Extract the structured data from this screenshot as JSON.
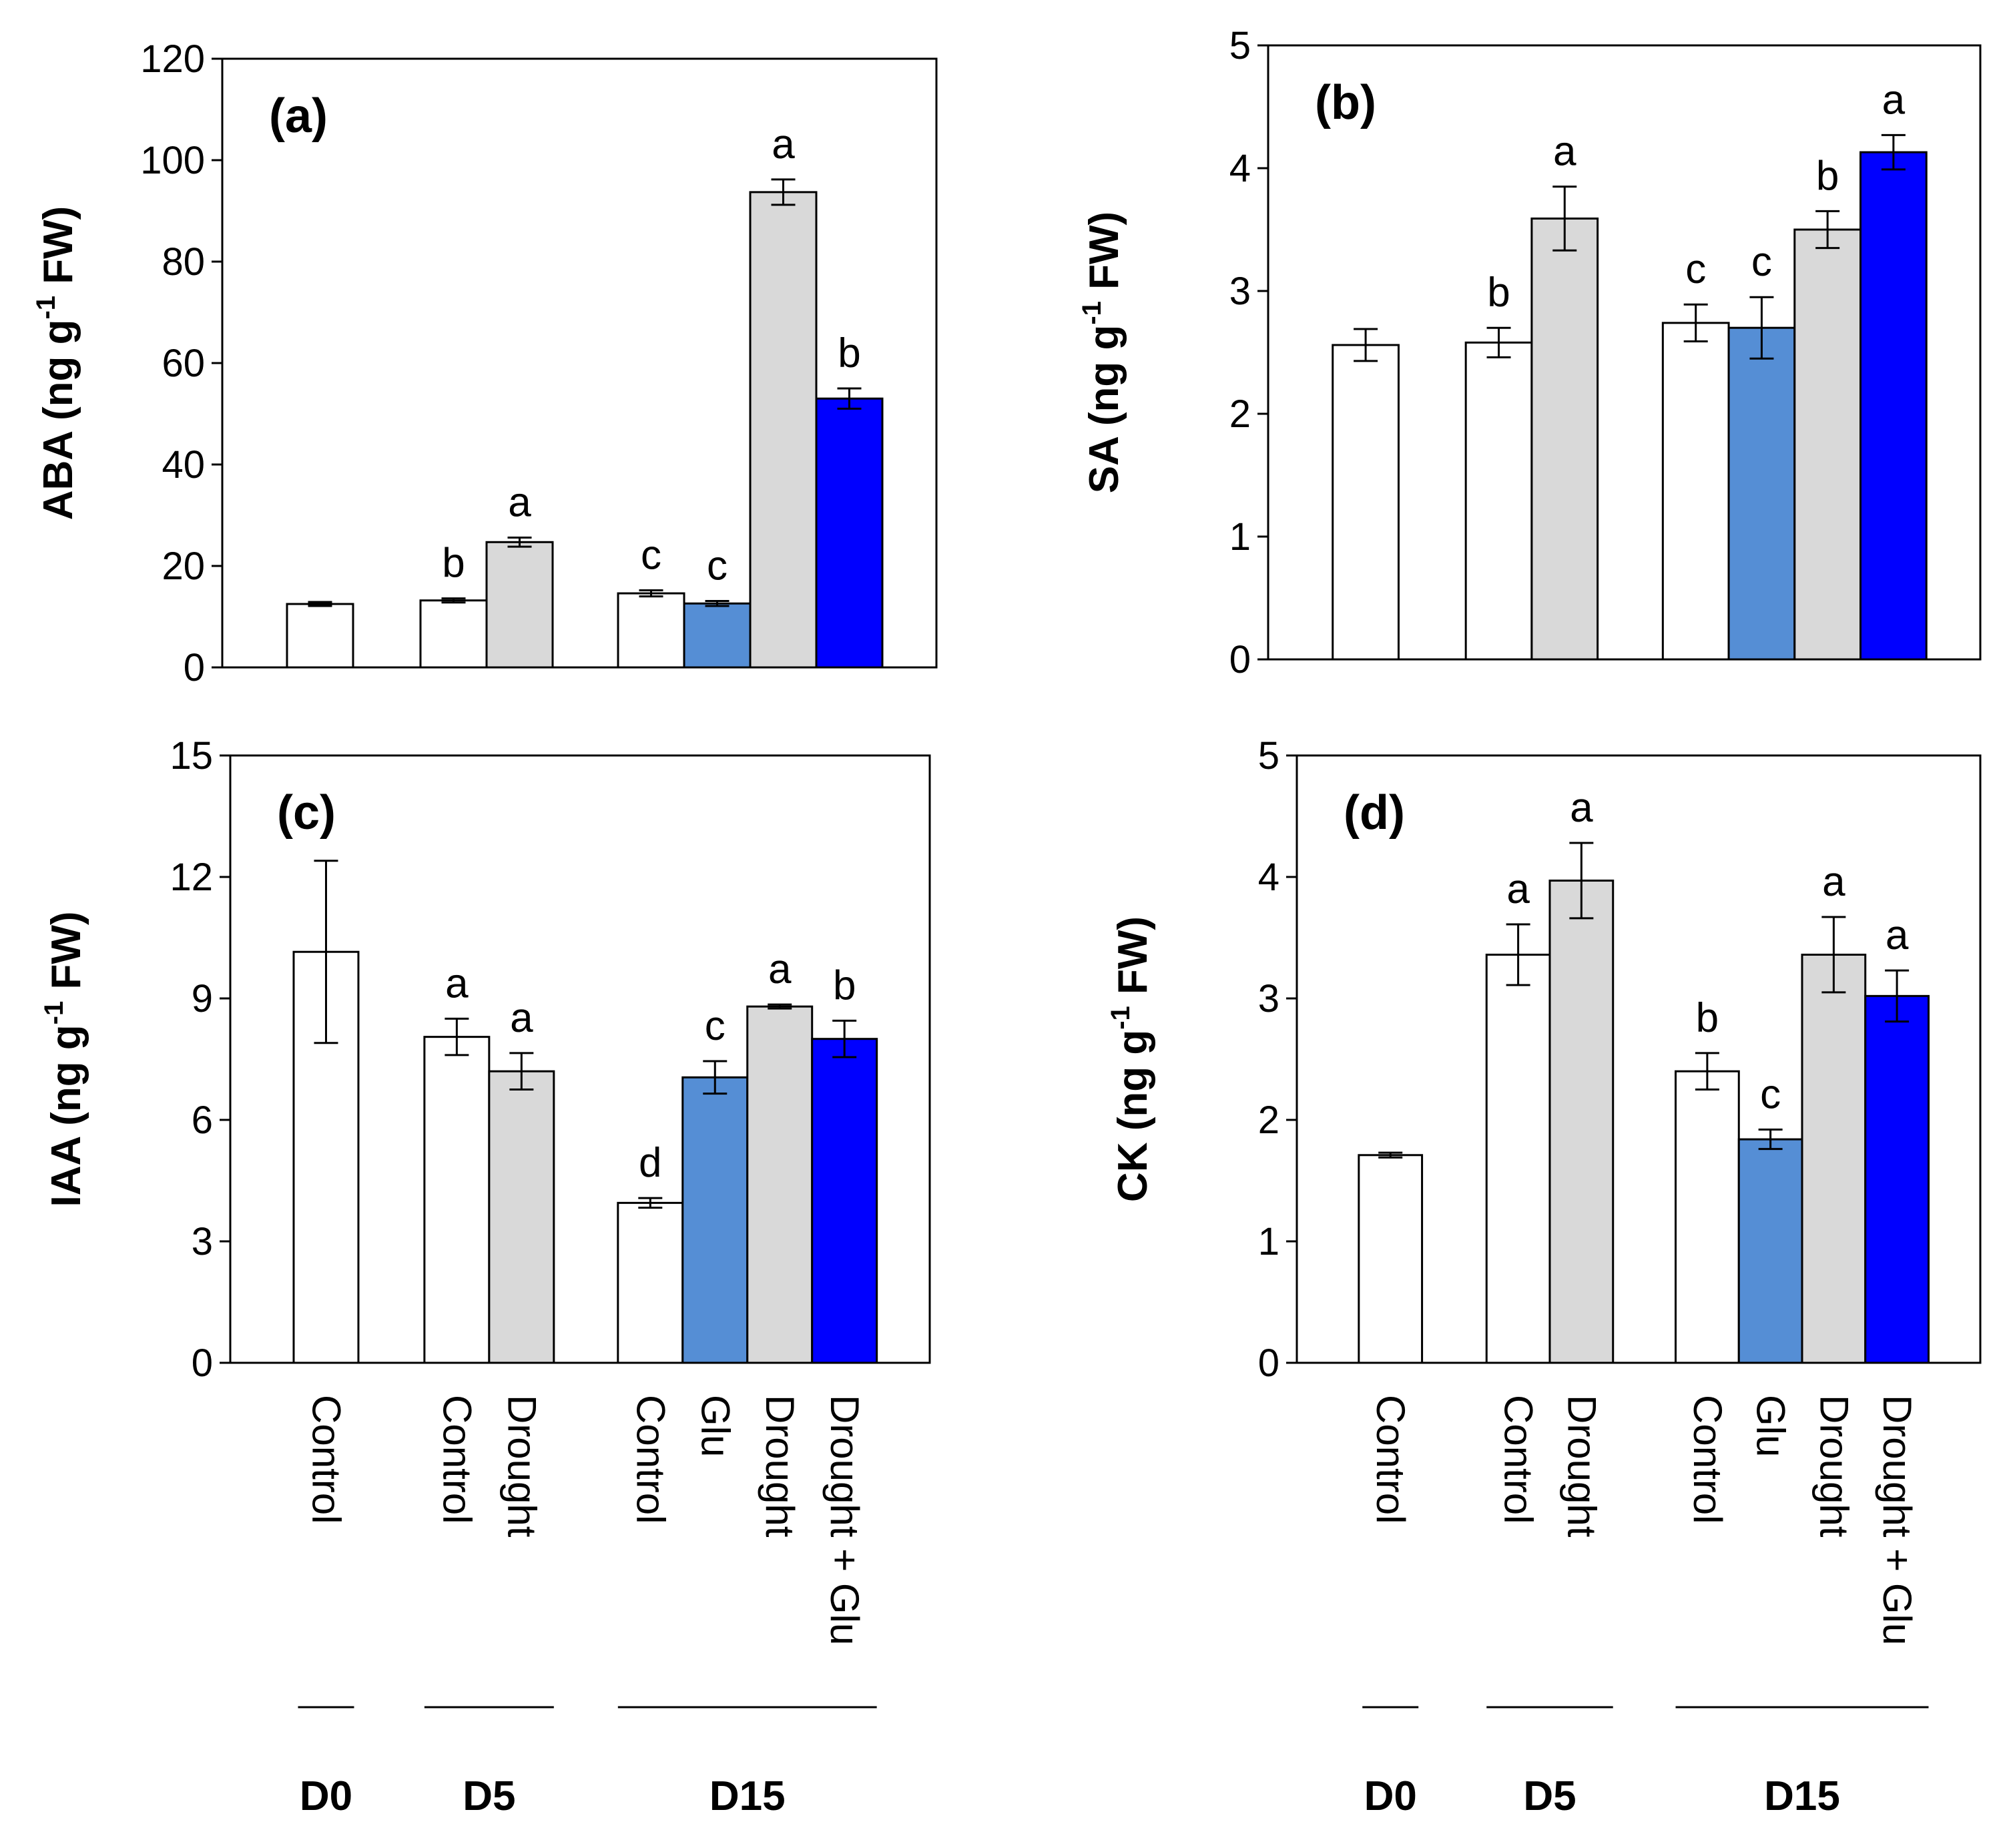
{
  "colors": {
    "Control": "#ffffff",
    "Glu": "#558ed5",
    "Drought": "#d9d9d9",
    "Drought + Glu": "#0000ff",
    "stroke": "#000000"
  },
  "chart_data": [
    {
      "id": "a",
      "type": "bar",
      "panel_label": "(a)",
      "ylabel": {
        "main": "ABA (ng g",
        "sup": "-1",
        "tail": " FW)"
      },
      "ylim": [
        0,
        120
      ],
      "yticks": [
        0,
        20,
        40,
        60,
        80,
        100,
        120
      ],
      "tick_labels": [
        "0",
        "20",
        "40",
        "60",
        "80",
        "100",
        "120"
      ],
      "bars": [
        {
          "group": "D0",
          "treatment": "Control",
          "value": 12.5,
          "error": 0.4,
          "sig": ""
        },
        {
          "group": "D5",
          "treatment": "Control",
          "value": 13.2,
          "error": 0.4,
          "sig": "b"
        },
        {
          "group": "D5",
          "treatment": "Drought",
          "value": 24.7,
          "error": 0.9,
          "sig": "a"
        },
        {
          "group": "D15",
          "treatment": "Control",
          "value": 14.6,
          "error": 0.6,
          "sig": "c"
        },
        {
          "group": "D15",
          "treatment": "Glu",
          "value": 12.6,
          "error": 0.5,
          "sig": "c"
        },
        {
          "group": "D15",
          "treatment": "Drought",
          "value": 93.7,
          "error": 2.5,
          "sig": "a"
        },
        {
          "group": "D15",
          "treatment": "Drought + Glu",
          "value": 53.0,
          "error": 2.0,
          "sig": "b"
        }
      ]
    },
    {
      "id": "b",
      "type": "bar",
      "panel_label": "(b)",
      "ylabel": {
        "main": "SA (ng g",
        "sup": "-1",
        "tail": " FW)"
      },
      "ylim": [
        0,
        5
      ],
      "yticks": [
        0,
        1,
        2,
        3,
        4,
        5
      ],
      "tick_labels": [
        "0",
        "1",
        "2",
        "3",
        "4",
        "5"
      ],
      "bars": [
        {
          "group": "D0",
          "treatment": "Control",
          "value": 2.56,
          "error": 0.13,
          "sig": ""
        },
        {
          "group": "D5",
          "treatment": "Control",
          "value": 2.58,
          "error": 0.12,
          "sig": "b"
        },
        {
          "group": "D5",
          "treatment": "Drought",
          "value": 3.59,
          "error": 0.26,
          "sig": "a"
        },
        {
          "group": "D15",
          "treatment": "Control",
          "value": 2.74,
          "error": 0.15,
          "sig": "c"
        },
        {
          "group": "D15",
          "treatment": "Glu",
          "value": 2.7,
          "error": 0.25,
          "sig": "c"
        },
        {
          "group": "D15",
          "treatment": "Drought",
          "value": 3.5,
          "error": 0.15,
          "sig": "b"
        },
        {
          "group": "D15",
          "treatment": "Drought + Glu",
          "value": 4.13,
          "error": 0.14,
          "sig": "a"
        }
      ]
    },
    {
      "id": "c",
      "type": "bar",
      "panel_label": "(c)",
      "ylabel": {
        "main": "IAA (ng g",
        "sup": "-1",
        "tail": " FW)"
      },
      "ylim": [
        0,
        15
      ],
      "yticks": [
        0,
        3,
        6,
        9,
        12,
        15
      ],
      "tick_labels": [
        "0",
        "3",
        "6",
        "9",
        "12",
        "15"
      ],
      "bars": [
        {
          "group": "D0",
          "treatment": "Control",
          "value": 10.15,
          "error": 2.25,
          "sig": ""
        },
        {
          "group": "D5",
          "treatment": "Control",
          "value": 8.05,
          "error": 0.45,
          "sig": "a"
        },
        {
          "group": "D5",
          "treatment": "Drought",
          "value": 7.2,
          "error": 0.45,
          "sig": "a"
        },
        {
          "group": "D15",
          "treatment": "Control",
          "value": 3.95,
          "error": 0.12,
          "sig": "d"
        },
        {
          "group": "D15",
          "treatment": "Glu",
          "value": 7.05,
          "error": 0.4,
          "sig": "c"
        },
        {
          "group": "D15",
          "treatment": "Drought",
          "value": 8.8,
          "error": 0.05,
          "sig": "a"
        },
        {
          "group": "D15",
          "treatment": "Drought + Glu",
          "value": 8.0,
          "error": 0.45,
          "sig": "b"
        }
      ]
    },
    {
      "id": "d",
      "type": "bar",
      "panel_label": "(d)",
      "ylabel": {
        "main": "CK (ng g",
        "sup": "-1",
        "tail": " FW)"
      },
      "ylim": [
        0,
        5
      ],
      "yticks": [
        0,
        1,
        2,
        3,
        4,
        5
      ],
      "tick_labels": [
        "0",
        "1",
        "2",
        "3",
        "4",
        "5"
      ],
      "bars": [
        {
          "group": "D0",
          "treatment": "Control",
          "value": 1.71,
          "error": 0.02,
          "sig": ""
        },
        {
          "group": "D5",
          "treatment": "Control",
          "value": 3.36,
          "error": 0.25,
          "sig": "a"
        },
        {
          "group": "D5",
          "treatment": "Drought",
          "value": 3.97,
          "error": 0.31,
          "sig": "a"
        },
        {
          "group": "D15",
          "treatment": "Control",
          "value": 2.4,
          "error": 0.15,
          "sig": "b"
        },
        {
          "group": "D15",
          "treatment": "Glu",
          "value": 1.84,
          "error": 0.08,
          "sig": "c"
        },
        {
          "group": "D15",
          "treatment": "Drought",
          "value": 3.36,
          "error": 0.31,
          "sig": "a"
        },
        {
          "group": "D15",
          "treatment": "Drought + Glu",
          "value": 3.02,
          "error": 0.21,
          "sig": "a"
        }
      ]
    }
  ],
  "x_categories": [
    "Control",
    "Control",
    "Drought",
    "Control",
    "Glu",
    "Drought",
    "Drought + Glu"
  ],
  "x_groups": [
    {
      "label": "D0",
      "bars": [
        0
      ]
    },
    {
      "label": "D5",
      "bars": [
        1,
        2
      ]
    },
    {
      "label": "D15",
      "bars": [
        3,
        4,
        5,
        6
      ]
    }
  ]
}
